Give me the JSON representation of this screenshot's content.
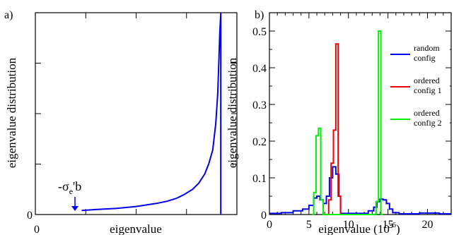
{
  "chart_data": [
    {
      "panel_label": "a)",
      "type": "line",
      "xlabel": "eigenvalue",
      "ylabel": "eigenvalue distribution",
      "x_ticks": [
        "0"
      ],
      "y_ticks": [
        "0"
      ],
      "xlim": [
        0,
        1
      ],
      "ylim": [
        0,
        1
      ],
      "annotation": {
        "text": "-σ",
        "subscript": "e",
        "suffix": "'b",
        "x": 0.23
      },
      "series": [
        {
          "color": "#0000ee",
          "x": [
            0.23,
            0.3,
            0.4,
            0.5,
            0.6,
            0.65,
            0.7,
            0.74,
            0.78,
            0.81,
            0.84,
            0.86,
            0.88,
            0.895,
            0.905,
            0.91,
            0.915,
            0.92,
            0.92
          ],
          "y": [
            0.02,
            0.025,
            0.03,
            0.04,
            0.055,
            0.065,
            0.08,
            0.1,
            0.125,
            0.155,
            0.2,
            0.25,
            0.32,
            0.45,
            0.6,
            0.75,
            0.9,
            1.0,
            0.0
          ]
        }
      ]
    },
    {
      "panel_label": "b)",
      "type": "line",
      "xlabel": "eigenvalue (10",
      "xlabel_sup": "-6",
      "xlabel_end": ")",
      "ylabel": "eigenvalue distribution",
      "x_ticks": [
        "0",
        "5",
        "10",
        "15",
        "20"
      ],
      "x_tick_values": [
        0,
        5,
        10,
        15,
        20
      ],
      "y_ticks": [
        "0",
        "0.1",
        "0.2",
        "0.3",
        "0.4",
        "0.5"
      ],
      "y_tick_values": [
        0,
        0.1,
        0.2,
        0.3,
        0.4,
        0.5
      ],
      "xlim": [
        0,
        23
      ],
      "ylim": [
        0,
        0.55
      ],
      "legend": [
        {
          "line1": "random",
          "line2": "config",
          "color": "#0000ee"
        },
        {
          "line1": "ordered",
          "line2": "config 1",
          "color": "#ee0000"
        },
        {
          "line1": "ordered",
          "line2": "config 2",
          "color": "#00ee00"
        }
      ],
      "series": [
        {
          "color": "#0000ee",
          "x": [
            0.0,
            1.5,
            1.5,
            3.0,
            3.0,
            4.2,
            4.2,
            5.0,
            5.0,
            5.6,
            5.6,
            6.0,
            6.0,
            6.4,
            6.4,
            6.8,
            6.8,
            7.2,
            7.2,
            7.6,
            7.6,
            8.0,
            8.0,
            8.4,
            8.4,
            8.8,
            8.8,
            9.0,
            9.0,
            12.5,
            12.5,
            13.2,
            13.2,
            13.6,
            13.6,
            14.0,
            14.0,
            14.4,
            14.4,
            14.8,
            14.8,
            15.2,
            15.2,
            15.6,
            15.6,
            16.4,
            16.4,
            19.0,
            19.0,
            21.5,
            21.5,
            23.0
          ],
          "y": [
            0.003,
            0.003,
            0.005,
            0.005,
            0.01,
            0.01,
            0.015,
            0.015,
            0.025,
            0.025,
            0.045,
            0.045,
            0.05,
            0.05,
            0.04,
            0.04,
            0.03,
            0.03,
            0.05,
            0.05,
            0.1,
            0.1,
            0.13,
            0.13,
            0.11,
            0.11,
            0.05,
            0.05,
            0.003,
            0.003,
            0.01,
            0.01,
            0.02,
            0.02,
            0.035,
            0.035,
            0.042,
            0.042,
            0.04,
            0.04,
            0.03,
            0.03,
            0.015,
            0.015,
            0.005,
            0.005,
            0.002,
            0.002,
            0.004,
            0.004,
            0.002,
            0.002
          ]
        },
        {
          "color": "#ee0000",
          "x": [
            7.3,
            7.5,
            7.5,
            7.8,
            7.8,
            8.1,
            8.1,
            8.4,
            8.4,
            8.7,
            8.7,
            9.0,
            9.0
          ],
          "y": [
            0.0,
            0.0,
            0.04,
            0.04,
            0.14,
            0.14,
            0.23,
            0.23,
            0.465,
            0.465,
            0.05,
            0.05,
            0.0
          ]
        },
        {
          "color": "#00ee00",
          "x": [
            5.4,
            5.6,
            5.6,
            5.9,
            5.9,
            6.2,
            6.2,
            6.5,
            6.5,
            6.8,
            6.8,
            7.0,
            7.0,
            13.5,
            13.5,
            13.8,
            13.8,
            14.1,
            14.1,
            14.4
          ],
          "y": [
            0.0,
            0.0,
            0.06,
            0.06,
            0.215,
            0.215,
            0.235,
            0.235,
            0.04,
            0.04,
            0.0,
            0.0,
            0.0,
            0.0,
            0.035,
            0.035,
            0.5,
            0.5,
            0.0,
            0.0
          ]
        }
      ]
    }
  ]
}
